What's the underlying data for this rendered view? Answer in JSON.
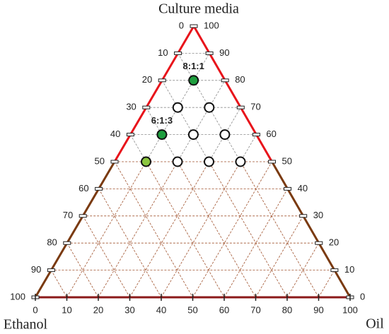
{
  "chart_data": {
    "type": "ternary",
    "vertex_labels": {
      "top": "Culture media",
      "left": "Ethanol",
      "right": "Oil"
    },
    "left_ticks": [
      0,
      10,
      20,
      30,
      40,
      50,
      60,
      70,
      80,
      90,
      100
    ],
    "right_ticks": [
      0,
      10,
      20,
      30,
      40,
      50,
      60,
      70,
      80,
      90,
      100
    ],
    "bottom_ticks": [
      0,
      10,
      20,
      30,
      40,
      50,
      60,
      70,
      80,
      90,
      100
    ],
    "points": {
      "culture": [
        80,
        70,
        70,
        60,
        60,
        60,
        50,
        50,
        50,
        50
      ],
      "oil": [
        10,
        10,
        20,
        10,
        20,
        30,
        10,
        20,
        30,
        40
      ],
      "colors": [
        "#1e9e3e",
        "#ffffff",
        "#ffffff",
        "#1e9e3e",
        "#ffffff",
        "#ffffff",
        "#8cc63f",
        "#ffffff",
        "#ffffff",
        "#ffffff"
      ],
      "labels": [
        "8:1:1",
        null,
        null,
        "6:1:3",
        null,
        null,
        null,
        null,
        null,
        null
      ]
    },
    "grid": true
  }
}
